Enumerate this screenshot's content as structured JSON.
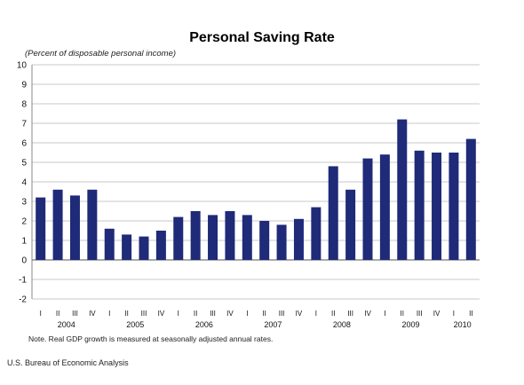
{
  "chart_data": {
    "type": "bar",
    "title": "Personal Saving Rate",
    "subtitle": "(Percent of disposable personal income)",
    "ylim": [
      -2,
      10
    ],
    "yticks": [
      10,
      9,
      8,
      7,
      6,
      5,
      4,
      3,
      2,
      1,
      0,
      -1,
      -2
    ],
    "grid": true,
    "bar_color": "#1f2a78",
    "categories": [
      "I",
      "II",
      "III",
      "IV",
      "I",
      "II",
      "III",
      "IV",
      "I",
      "II",
      "III",
      "IV",
      "I",
      "II",
      "III",
      "IV",
      "I",
      "II",
      "III",
      "IV",
      "I",
      "II",
      "III",
      "IV",
      "I",
      "II"
    ],
    "years": [
      "2004",
      "2005",
      "2006",
      "2007",
      "2008",
      "2009",
      "2010"
    ],
    "values": [
      3.2,
      3.6,
      3.3,
      3.6,
      1.6,
      1.3,
      1.2,
      1.5,
      2.2,
      2.5,
      2.3,
      2.5,
      2.3,
      2.0,
      1.8,
      2.1,
      2.7,
      4.8,
      3.6,
      5.2,
      5.4,
      7.2,
      5.6,
      5.5,
      5.5,
      6.2
    ]
  },
  "note": "Note.  Real GDP growth is measured at seasonally adjusted annual rates.",
  "source": "U.S. Bureau of Economic Analysis"
}
